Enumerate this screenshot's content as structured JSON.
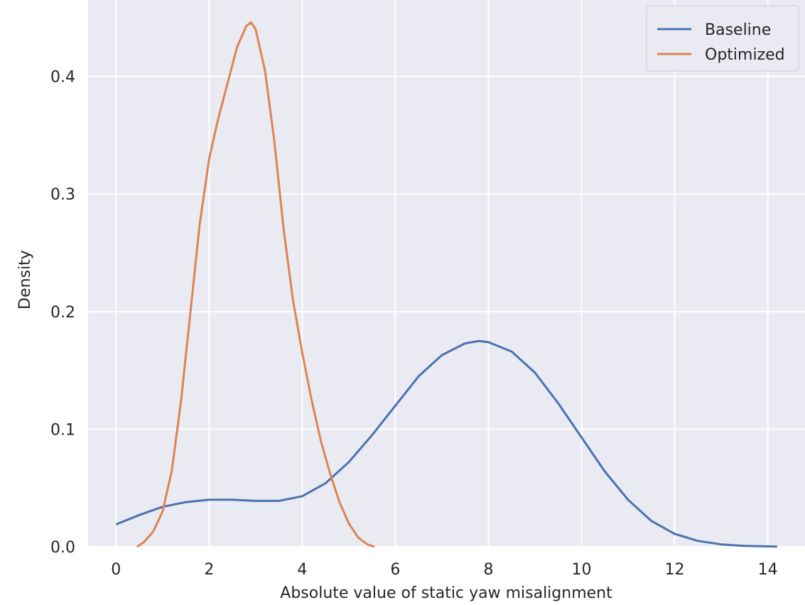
{
  "chart_data": {
    "type": "line",
    "title": "",
    "xlabel": "Absolute value of static yaw misalignment",
    "ylabel": "Density",
    "xlim": [
      -0.6,
      14.8
    ],
    "ylim": [
      0.0,
      0.465
    ],
    "xticks": [
      0,
      2,
      4,
      6,
      8,
      10,
      12,
      14
    ],
    "yticks": [
      0.0,
      0.1,
      0.2,
      0.3,
      0.4
    ],
    "ytick_labels": [
      "0.0",
      "0.1",
      "0.2",
      "0.3",
      "0.4"
    ],
    "grid": true,
    "background": "#eaeaf2",
    "legend_position": "top-right",
    "series": [
      {
        "name": "Baseline",
        "color": "#4c72b0",
        "points": [
          [
            0.0,
            0.019
          ],
          [
            0.5,
            0.027
          ],
          [
            1.0,
            0.034
          ],
          [
            1.5,
            0.038
          ],
          [
            2.0,
            0.04
          ],
          [
            2.5,
            0.04
          ],
          [
            3.0,
            0.039
          ],
          [
            3.5,
            0.039
          ],
          [
            4.0,
            0.043
          ],
          [
            4.5,
            0.054
          ],
          [
            5.0,
            0.072
          ],
          [
            5.5,
            0.095
          ],
          [
            6.0,
            0.12
          ],
          [
            6.5,
            0.145
          ],
          [
            7.0,
            0.163
          ],
          [
            7.5,
            0.173
          ],
          [
            7.8,
            0.175
          ],
          [
            8.0,
            0.174
          ],
          [
            8.5,
            0.166
          ],
          [
            9.0,
            0.148
          ],
          [
            9.5,
            0.122
          ],
          [
            10.0,
            0.093
          ],
          [
            10.5,
            0.064
          ],
          [
            11.0,
            0.04
          ],
          [
            11.5,
            0.022
          ],
          [
            12.0,
            0.011
          ],
          [
            12.5,
            0.005
          ],
          [
            13.0,
            0.002
          ],
          [
            13.5,
            0.0007
          ],
          [
            14.2,
            0.0001
          ]
        ]
      },
      {
        "name": "Optimized",
        "color": "#dd8452",
        "points": [
          [
            0.45,
            0.0
          ],
          [
            0.6,
            0.004
          ],
          [
            0.8,
            0.013
          ],
          [
            1.0,
            0.03
          ],
          [
            1.2,
            0.065
          ],
          [
            1.4,
            0.125
          ],
          [
            1.6,
            0.2
          ],
          [
            1.8,
            0.275
          ],
          [
            2.0,
            0.33
          ],
          [
            2.2,
            0.365
          ],
          [
            2.4,
            0.395
          ],
          [
            2.6,
            0.425
          ],
          [
            2.8,
            0.443
          ],
          [
            2.9,
            0.446
          ],
          [
            3.0,
            0.44
          ],
          [
            3.2,
            0.405
          ],
          [
            3.4,
            0.345
          ],
          [
            3.6,
            0.27
          ],
          [
            3.8,
            0.21
          ],
          [
            4.0,
            0.165
          ],
          [
            4.2,
            0.125
          ],
          [
            4.4,
            0.09
          ],
          [
            4.6,
            0.062
          ],
          [
            4.8,
            0.038
          ],
          [
            5.0,
            0.02
          ],
          [
            5.2,
            0.008
          ],
          [
            5.4,
            0.002
          ],
          [
            5.55,
            0.0
          ]
        ]
      }
    ]
  }
}
